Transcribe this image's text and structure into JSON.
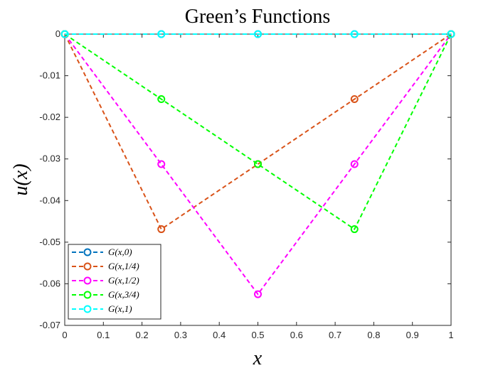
{
  "chart_data": {
    "type": "line",
    "title": "Green’s Functions",
    "xlabel": "x",
    "ylabel": "u(x)",
    "x": [
      0,
      0.25,
      0.5,
      0.75,
      1
    ],
    "xlim": [
      0,
      1
    ],
    "ylim": [
      -0.07,
      0
    ],
    "xticks": [
      "0",
      "0.1",
      "0.2",
      "0.3",
      "0.4",
      "0.5",
      "0.6",
      "0.7",
      "0.8",
      "0.9",
      "1"
    ],
    "yticks": [
      "0",
      "-0.01",
      "-0.02",
      "-0.03",
      "-0.04",
      "-0.05",
      "-0.06",
      "-0.07"
    ],
    "grid": false,
    "legend_position": "bottom-left",
    "line_style": "dashed",
    "marker": "circle",
    "series": [
      {
        "name": "G(x,0)",
        "color": "#0072BD",
        "values": [
          0,
          0,
          0,
          0,
          0
        ]
      },
      {
        "name": "G(x,1/4)",
        "color": "#D95319",
        "values": [
          0,
          -0.046875,
          -0.03125,
          -0.015625,
          0
        ]
      },
      {
        "name": "G(x,1/2)",
        "color": "#FF00FF",
        "values": [
          0,
          -0.03125,
          -0.0625,
          -0.03125,
          0
        ]
      },
      {
        "name": "G(x,3/4)",
        "color": "#00FF00",
        "values": [
          0,
          -0.015625,
          -0.03125,
          -0.046875,
          0
        ]
      },
      {
        "name": "G(x,1)",
        "color": "#00FFFF",
        "values": [
          0,
          0,
          0,
          0,
          0
        ]
      }
    ]
  }
}
